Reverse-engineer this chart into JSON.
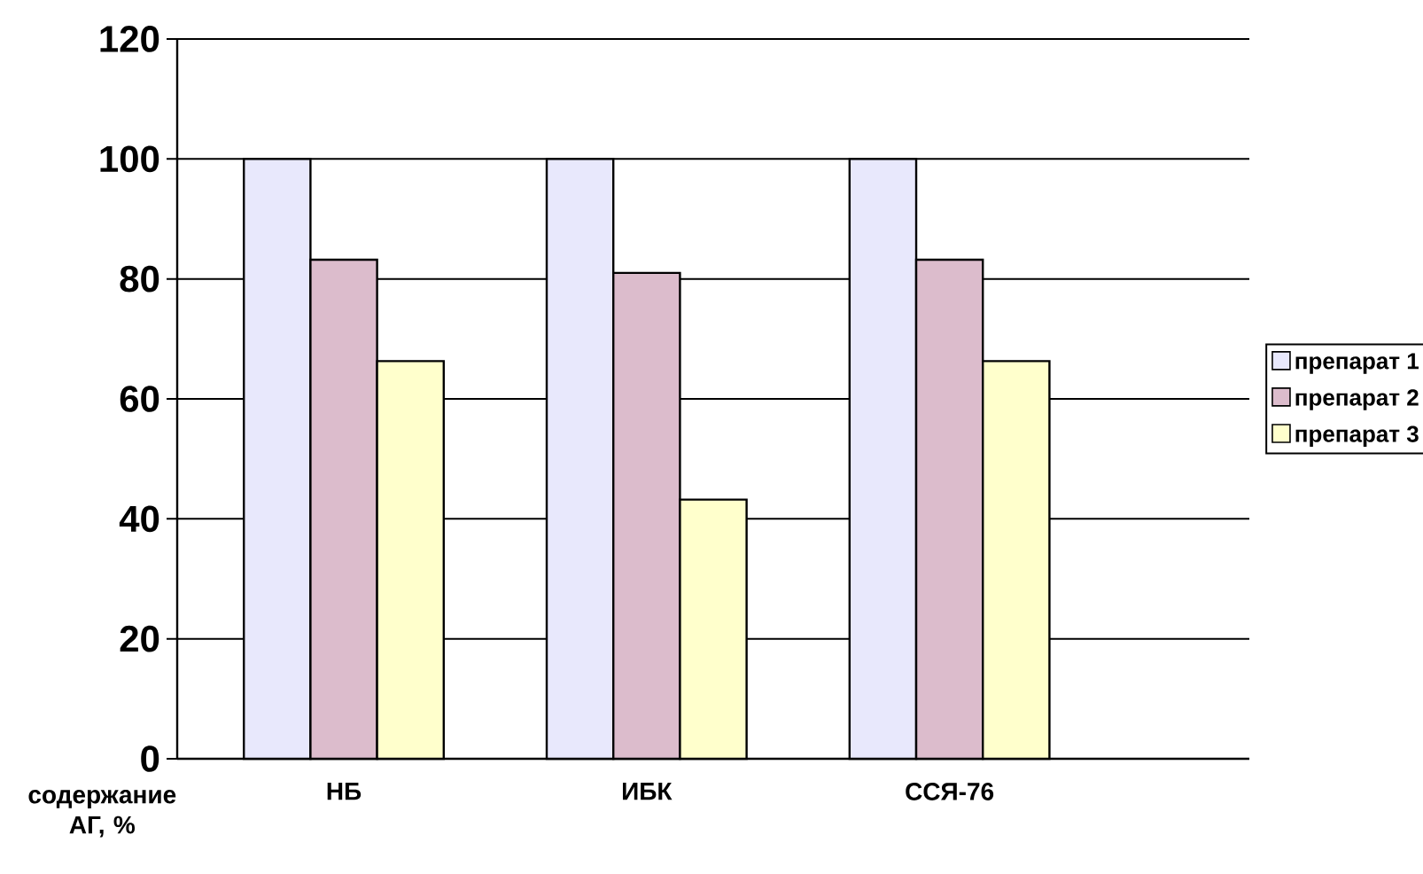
{
  "chart_data": {
    "type": "bar",
    "xlabel": "содержание АГ, %",
    "categories": [
      "НБ",
      "ИБК",
      "ССЯ-76"
    ],
    "series": [
      {
        "name": "препарат 1",
        "color": "#e8e8fc",
        "values": [
          100,
          100,
          100
        ]
      },
      {
        "name": "препарат 2",
        "color": "#dcbccc",
        "values": [
          83.2,
          81,
          83.2
        ]
      },
      {
        "name": "препарат 3",
        "color": "#ffffcc",
        "values": [
          66.3,
          43.2,
          66.3
        ]
      }
    ],
    "ylim": [
      0,
      120
    ],
    "yticks": [
      0,
      20,
      40,
      60,
      80,
      100,
      120
    ],
    "grid": "y",
    "legend": "right"
  }
}
